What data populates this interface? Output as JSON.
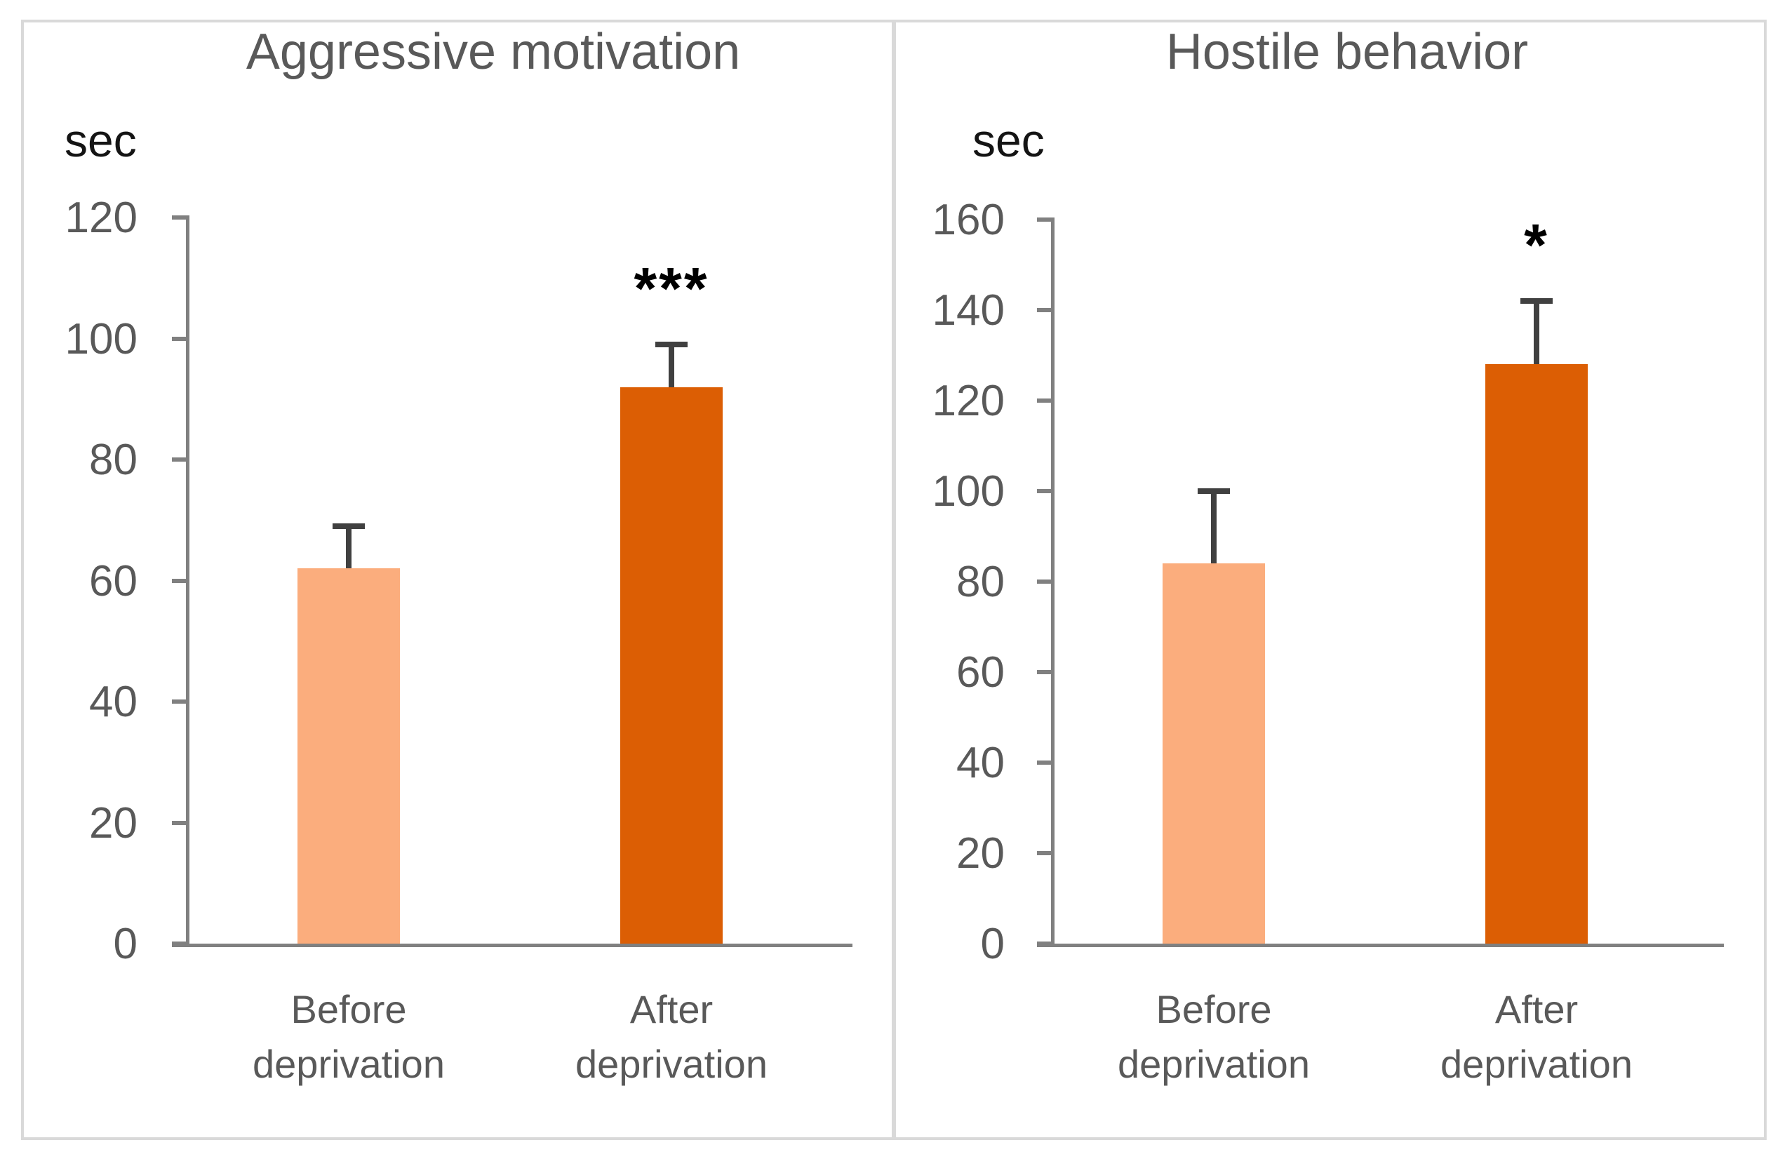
{
  "figure": {
    "background": "#FFFFFF",
    "frame_color": "#D9D9D9"
  },
  "colors": {
    "bar_before": "#FBAD7D",
    "bar_after": "#DC5E04",
    "axis_line": "#808080",
    "error_bar": "#404040",
    "text_gray": "#595959",
    "unit_text": "#141414",
    "significance_text": "#000000"
  },
  "chart_data": [
    {
      "type": "bar",
      "title": "Aggressive motivation",
      "unit_label": "sec",
      "categories": [
        "Before deprivation",
        "After deprivation"
      ],
      "category_lines": [
        [
          "Before",
          "deprivation"
        ],
        [
          "After",
          "deprivation"
        ]
      ],
      "values": [
        62,
        92
      ],
      "error_bar_tops": [
        69,
        99
      ],
      "significance": [
        "",
        "***"
      ],
      "bar_colors": [
        "#FBAD7D",
        "#DC5E04"
      ],
      "ylim": [
        0,
        120
      ],
      "yticks": [
        0,
        20,
        40,
        60,
        80,
        100,
        120
      ],
      "grid": false,
      "legend": false
    },
    {
      "type": "bar",
      "title": "Hostile behavior",
      "unit_label": "sec",
      "categories": [
        "Before deprivation",
        "After deprivation"
      ],
      "category_lines": [
        [
          "Before",
          "deprivation"
        ],
        [
          "After",
          "deprivation"
        ]
      ],
      "values": [
        84,
        128
      ],
      "error_bar_tops": [
        100,
        142
      ],
      "significance": [
        "",
        "*"
      ],
      "bar_colors": [
        "#FBAD7D",
        "#DC5E04"
      ],
      "ylim": [
        0,
        160
      ],
      "yticks": [
        0,
        20,
        40,
        60,
        80,
        100,
        120,
        140,
        160
      ],
      "grid": false,
      "legend": false
    }
  ]
}
